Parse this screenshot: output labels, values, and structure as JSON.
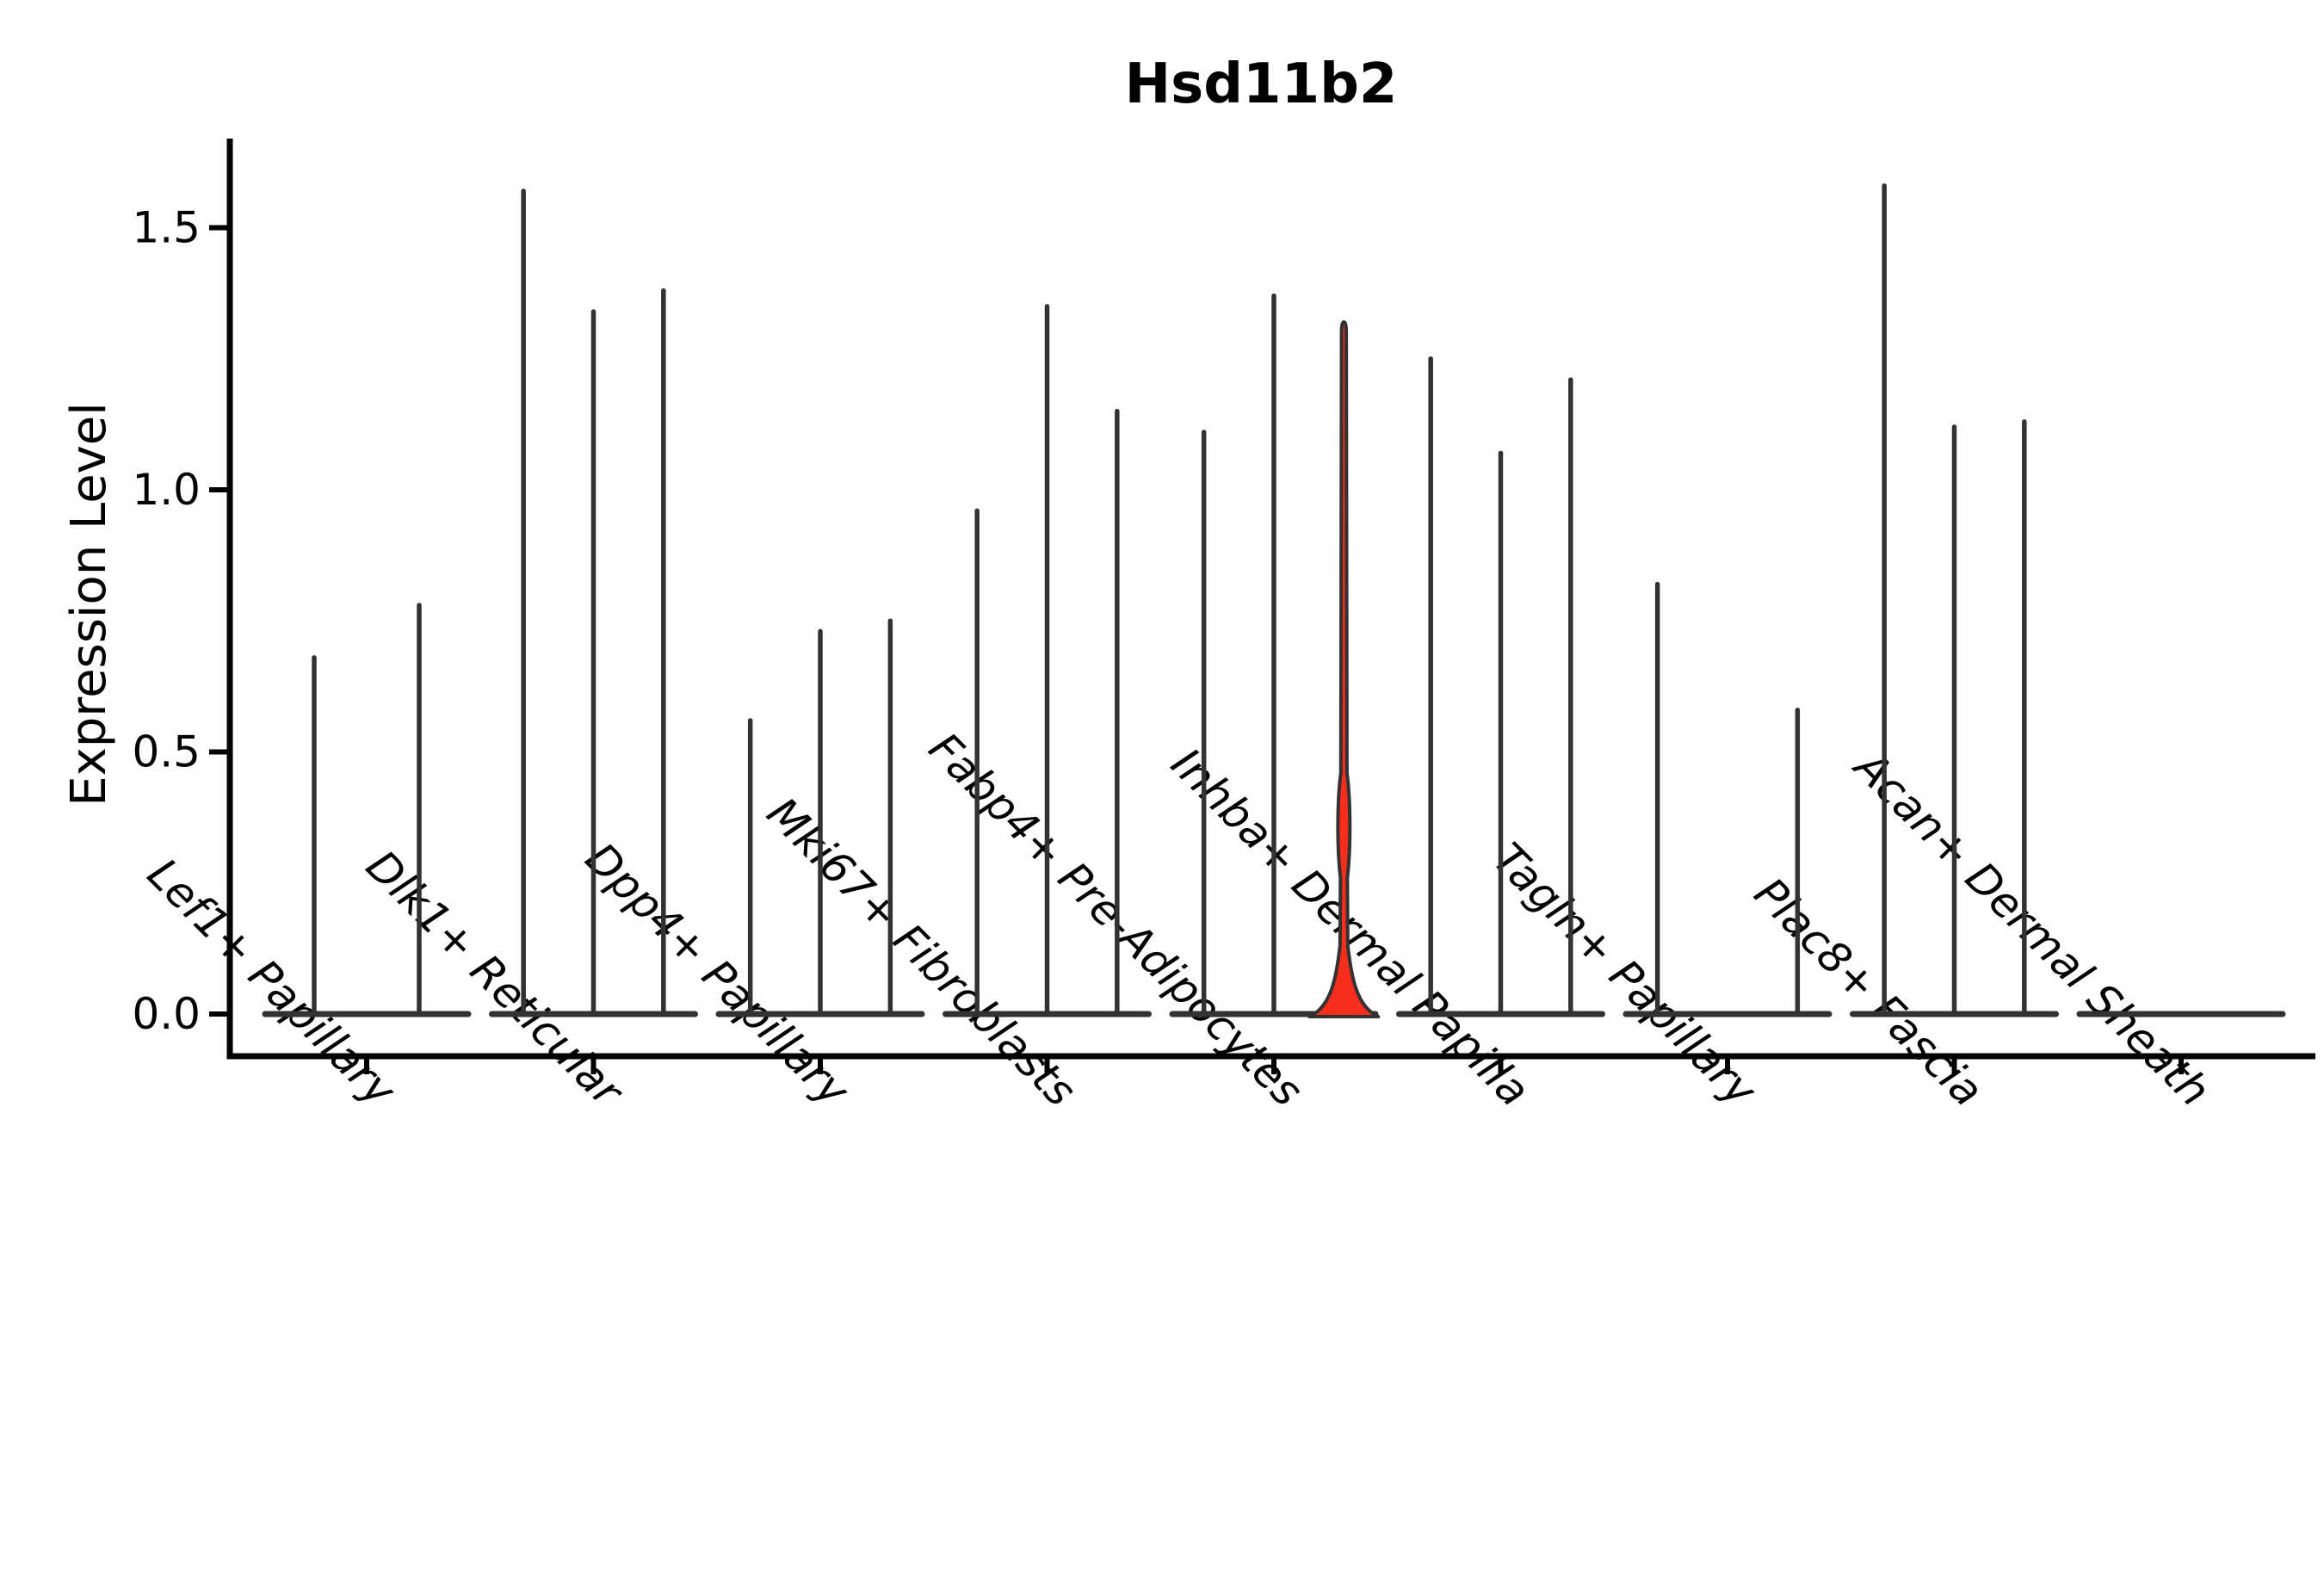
{
  "chart_data": {
    "type": "violin",
    "title": "Hsd11b2",
    "xlabel": "",
    "ylabel": "Expression Level",
    "ylim": [
      -0.09,
      1.67
    ],
    "yticks": [
      0.0,
      0.5,
      1.0,
      1.5
    ],
    "ytick_labels": [
      "0.0",
      "0.5",
      "1.0",
      "1.5"
    ],
    "grid": false,
    "legend": "none",
    "categories": [
      "Lef1+ Papillary",
      "Dlk1+ Reticular",
      "Dpp4+ Papillary",
      "Mki67+ Fibroblasts",
      "Fabp4+ Pre-Adipocytes",
      "Inhba+ Dermal Papilla",
      "Tagln+ Papillary",
      "Plac8+ Fascia",
      "Acan+ Dermal Sheath"
    ],
    "groups": [
      {
        "category": "Lef1+ Papillary",
        "violins": [
          {
            "max": 0.68
          },
          {
            "max": 0.78
          }
        ]
      },
      {
        "category": "Dlk1+ Reticular",
        "violins": [
          {
            "max": 1.57
          },
          {
            "max": 1.34
          },
          {
            "max": 1.38
          }
        ]
      },
      {
        "category": "Dpp4+ Papillary",
        "violins": [
          {
            "max": 0.56
          },
          {
            "max": 0.73
          },
          {
            "max": 0.75
          }
        ]
      },
      {
        "category": "Mki67+ Fibroblasts",
        "violins": [
          {
            "max": 0.96
          },
          {
            "max": 1.35
          },
          {
            "max": 1.15
          }
        ]
      },
      {
        "category": "Fabp4+ Pre-Adipocytes",
        "violins": [
          {
            "max": 1.11
          },
          {
            "max": 1.37
          },
          {
            "max": 1.32,
            "highlight": true,
            "bulge": {
              "base_max": 0.13,
              "base_halfwidth": 40,
              "neck_halfwidth": 4.5,
              "lens_center": 0.36,
              "lens_span": 0.1,
              "lens_halfwidth": 8,
              "spike_halfwidth": 2.75
            }
          }
        ]
      },
      {
        "category": "Inhba+ Dermal Papilla",
        "violins": [
          {
            "max": 1.25
          },
          {
            "max": 1.07
          },
          {
            "max": 1.21
          }
        ]
      },
      {
        "category": "Tagln+ Papillary",
        "violins": [
          {
            "max": 0.82
          },
          {
            "max": 0
          },
          {
            "max": 0.58
          }
        ]
      },
      {
        "category": "Plac8+ Fascia",
        "violins": [
          {
            "max": 1.58
          },
          {
            "max": 1.12
          },
          {
            "max": 1.13
          }
        ]
      },
      {
        "category": "Acan+ Dermal Sheath",
        "violins": [
          {
            "max": 0
          },
          {
            "max": 0
          },
          {
            "max": 0
          }
        ]
      }
    ],
    "colors": {
      "outline": "#323232",
      "axis": "#000000",
      "highlight_fill": "#f82d1c",
      "background": "#ffffff"
    }
  }
}
